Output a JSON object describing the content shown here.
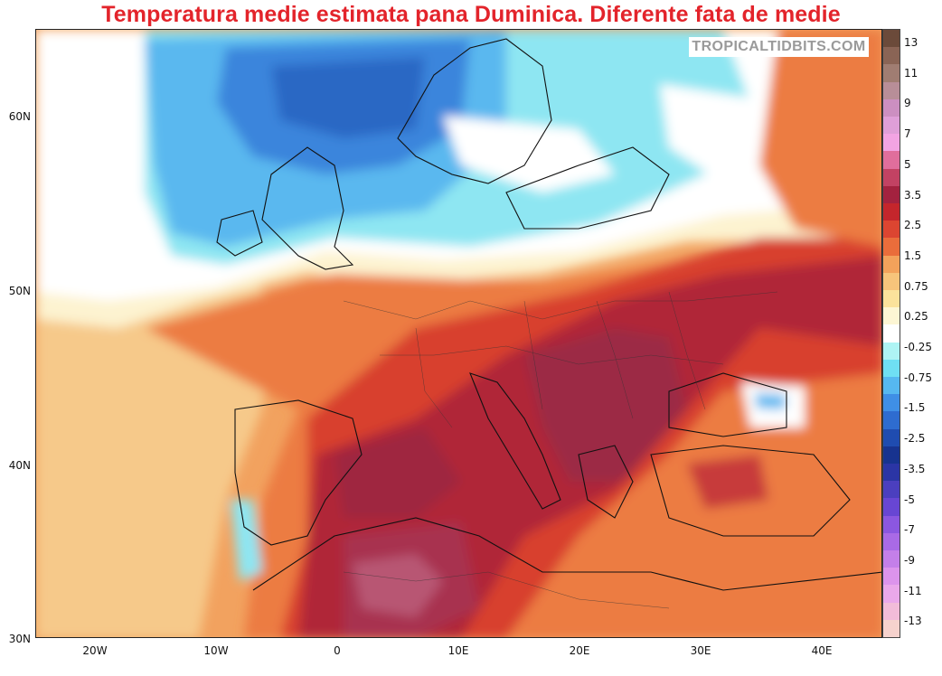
{
  "title": "Temperatura medie estimata pana Duminica. Diferente fata de medie",
  "watermark": "TROPICALTIDBITS.COM",
  "lat_labels": [
    "60N",
    "50N",
    "40N",
    "30N"
  ],
  "lon_labels": [
    "20W",
    "10W",
    "0",
    "10E",
    "20E",
    "30E",
    "40E"
  ],
  "colorbar": {
    "colors": [
      "#6b4a3a",
      "#8a6455",
      "#a07d72",
      "#b88e98",
      "#cc8fc1",
      "#df9fd8",
      "#f2a4e3",
      "#e06e9c",
      "#c24263",
      "#a3223f",
      "#c4262c",
      "#dc4531",
      "#ea6d3b",
      "#f3a25b",
      "#f7c47b",
      "#fbe29b",
      "#fdf6d4",
      "#ffffff",
      "#aef4f4",
      "#6fdff3",
      "#56b8f0",
      "#3f8fe6",
      "#2e6cd0",
      "#1f4cb0",
      "#17338f",
      "#2b35a5",
      "#4b3fbf",
      "#6846d3",
      "#8b57e0",
      "#a96ae6",
      "#c47fe9",
      "#dc94ec",
      "#eaa8ea",
      "#f2bcd9",
      "#f6d2cd"
    ],
    "labels": [
      "13",
      "11",
      "9",
      "7",
      "5",
      "3.5",
      "2.5",
      "1.5",
      "0.75",
      "0.25",
      "-0.25",
      "-0.75",
      "-1.5",
      "-2.5",
      "-3.5",
      "-5",
      "-7",
      "-9",
      "-11",
      "-13"
    ]
  }
}
